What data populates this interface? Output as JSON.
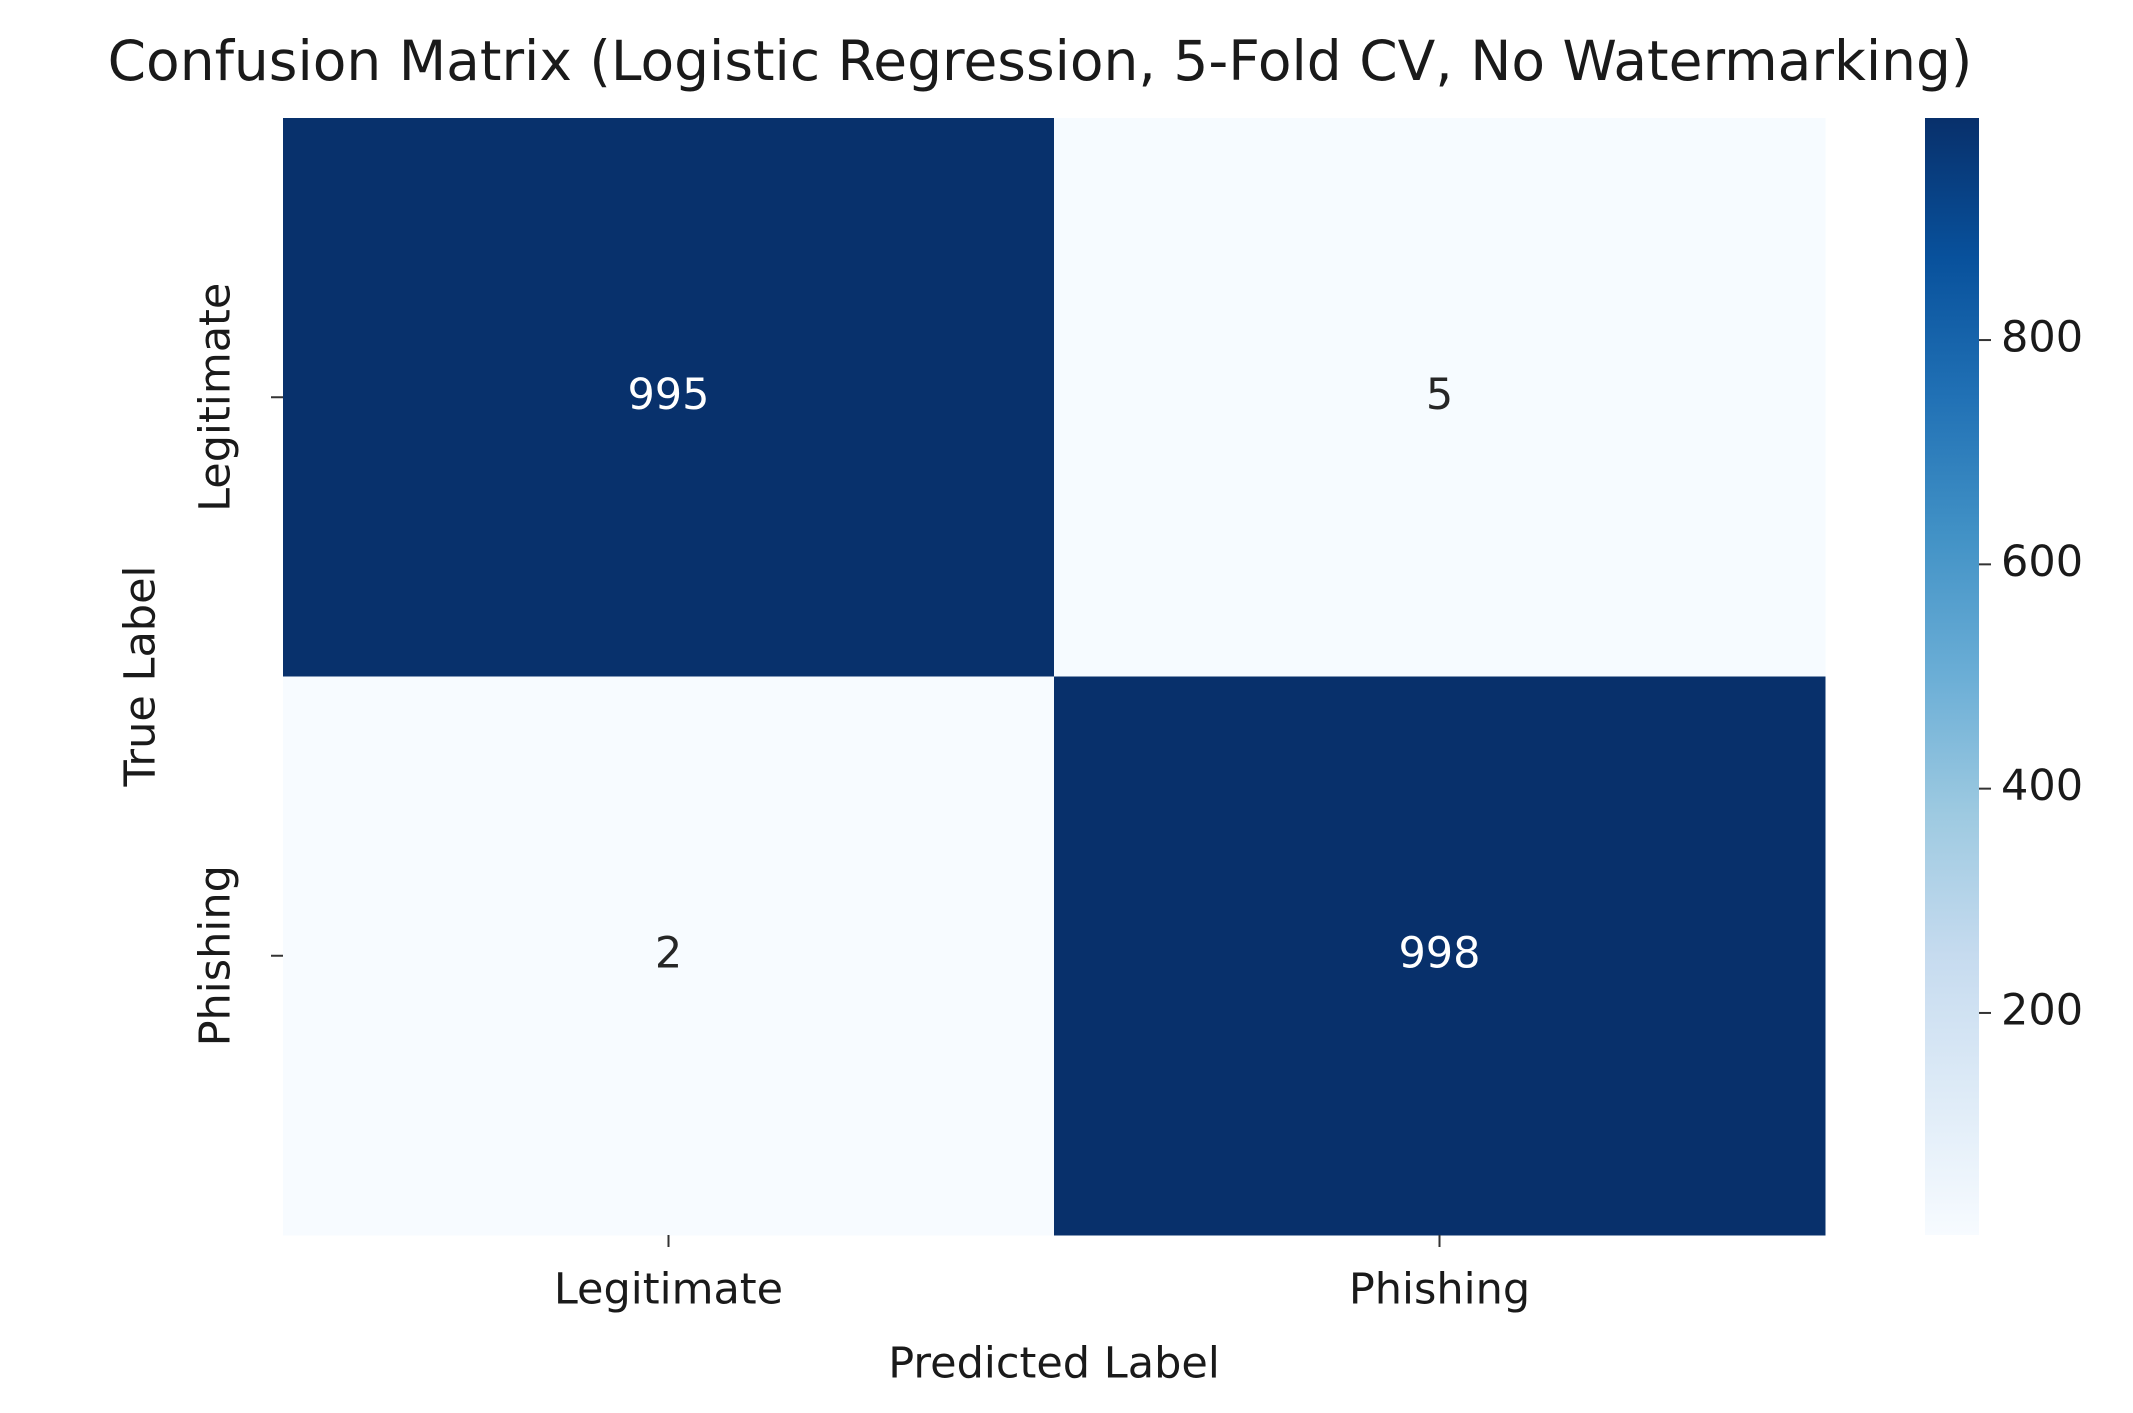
{
  "chart_data": {
    "type": "heatmap",
    "title": "Confusion Matrix (Logistic Regression, 5-Fold CV, No Watermarking)",
    "xlabel": "Predicted Label",
    "ylabel": "True Label",
    "x_categories": [
      "Legitimate",
      "Phishing"
    ],
    "y_categories": [
      "Legitimate",
      "Phishing"
    ],
    "values": [
      [
        995,
        5
      ],
      [
        2,
        998
      ]
    ],
    "colormap": "Blues",
    "clim": [
      2,
      998
    ],
    "cticks": [
      200,
      400,
      600,
      800
    ]
  }
}
